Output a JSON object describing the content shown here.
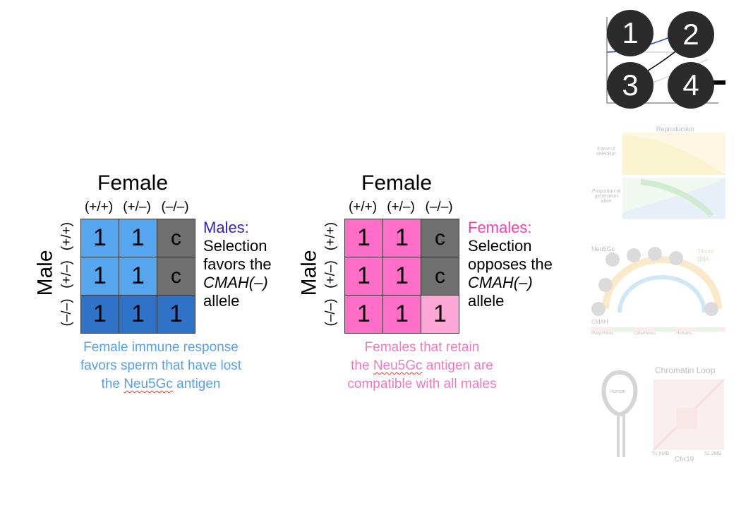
{
  "left_panel": {
    "title": "Female",
    "col_headers": [
      "(+/+)",
      "(+/–)",
      "(–/–)"
    ],
    "row_label": "Male",
    "row_headers": [
      "(+/+)",
      "(+/–)",
      "(–/–)"
    ],
    "cells": [
      [
        "1",
        "1",
        "c"
      ],
      [
        "1",
        "1",
        "c"
      ],
      [
        "1",
        "1",
        "1"
      ]
    ],
    "selection_title": "Males:",
    "selection_lines": [
      "Selection",
      "favors the",
      "CMAH(–)",
      "allele"
    ],
    "caption_lines": [
      "Female immune response",
      "favors sperm that have lost"
    ],
    "caption_line3_pre": "the ",
    "caption_line3_word": "Neu5Gc",
    "caption_line3_post": " antigen",
    "colors": {
      "cell": "#55a6ee",
      "bottom_row": "#2f73c9",
      "c_cell": "#707070",
      "title": "#3322bb",
      "caption": "#5aa0e6"
    }
  },
  "right_panel": {
    "title": "Female",
    "col_headers": [
      "(+/+)",
      "(+/–)",
      "(–/–)"
    ],
    "row_label": "Male",
    "row_headers": [
      "(+/+)",
      "(+/–)",
      "(–/–)"
    ],
    "cells": [
      [
        "1",
        "1",
        "c"
      ],
      [
        "1",
        "1",
        "c"
      ],
      [
        "1",
        "1",
        "1"
      ]
    ],
    "selection_title": "Females:",
    "selection_lines": [
      "Selection",
      "opposes the",
      "CMAH(–)",
      "allele"
    ],
    "caption_line1": "Females that retain",
    "caption_line2_pre": "the ",
    "caption_line2_word": "Neu5Gc",
    "caption_line2_post": " antigen are",
    "caption_line3": "compatible with all males",
    "colors": {
      "cell": "#ff6fc8",
      "light_cell": "#ffa8d8",
      "c_cell": "#707070",
      "title": "#ff3ab0",
      "caption": "#f07ac0"
    }
  },
  "thumbnails": {
    "numbers": [
      "1",
      "2",
      "3",
      "4"
    ],
    "thumb2_title": "Reproduction",
    "thumb2_left": "Force of selection",
    "thumb2_left2": "Proportion of generation alive",
    "thumb3_label": "Neu5Gc",
    "thumb3_legend": [
      "Tissue",
      "DNA"
    ],
    "thumb3_cmah": "CMAH",
    "thumb3_rows": [
      "Platyrrhines",
      "Catarrhines",
      "Humans"
    ],
    "thumb4_title": "Chromatin Loop",
    "thumb4_left_tick": "51.6MB",
    "thumb4_right_tick": "52.2MB",
    "thumb4_axis": "Chr19",
    "thumb4_human": "Human"
  }
}
